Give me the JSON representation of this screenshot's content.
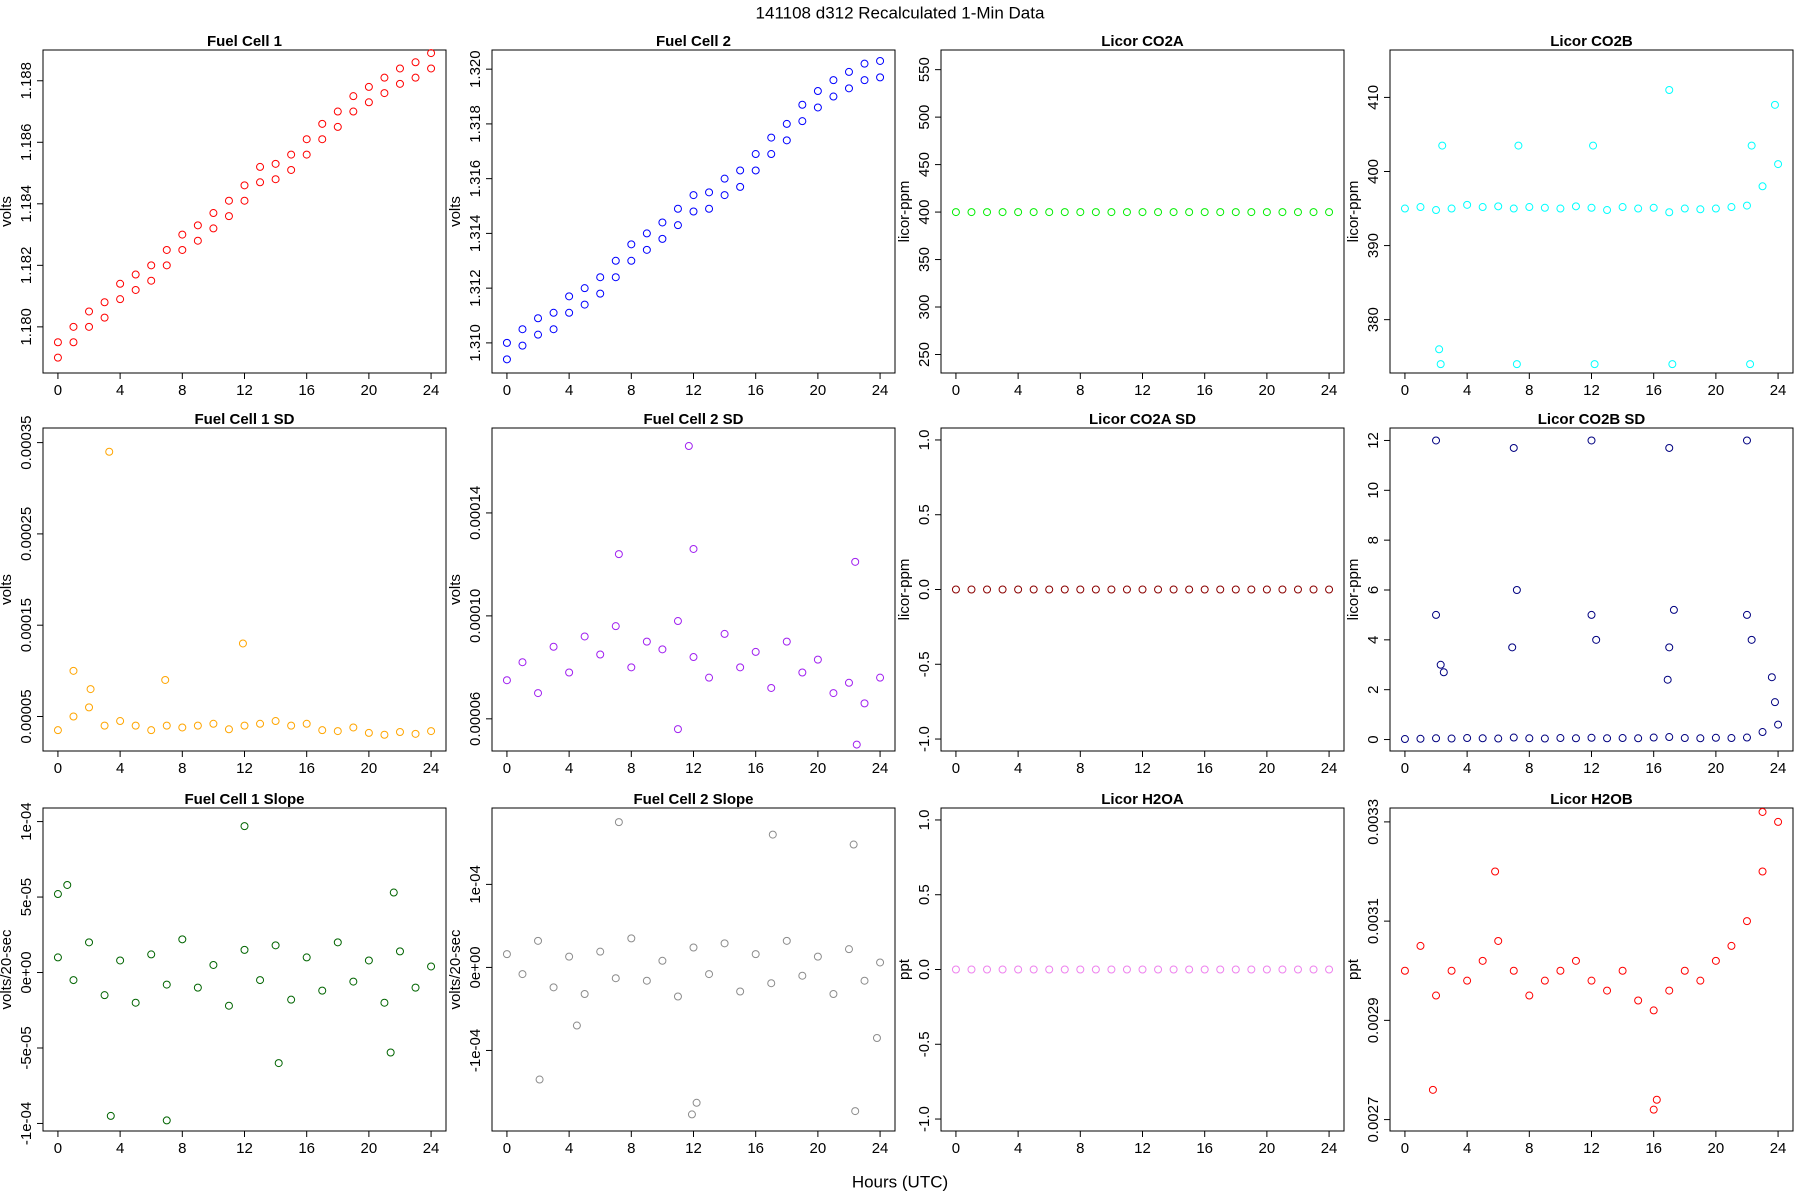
{
  "title": "141108   d312   Recalculated 1-Min Data",
  "xlabel": "Hours (UTC)",
  "chart_data": [
    {
      "type": "scatter",
      "title": "Fuel Cell 1",
      "ylabel": "volts",
      "x": [
        0,
        1,
        2,
        3,
        4,
        5,
        6,
        7,
        8,
        9,
        10,
        11,
        12,
        13,
        14,
        15,
        16,
        17,
        18,
        19,
        20,
        21,
        22,
        23,
        24
      ],
      "series": [
        {
          "color": "#ff0000",
          "values": [
            1.1795,
            1.18,
            1.1805,
            1.1808,
            1.1814,
            1.1817,
            1.182,
            1.1825,
            1.183,
            1.1833,
            1.1837,
            1.1841,
            1.1846,
            1.1852,
            1.1853,
            1.1856,
            1.1861,
            1.1866,
            1.187,
            1.1875,
            1.1878,
            1.1881,
            1.1884,
            1.1886,
            1.1889
          ]
        },
        {
          "color": "#ff0000",
          "values": [
            1.179,
            1.1795,
            1.18,
            1.1803,
            1.1809,
            1.1812,
            1.1815,
            1.182,
            1.1825,
            1.1828,
            1.1832,
            1.1836,
            1.1841,
            1.1847,
            1.1848,
            1.1851,
            1.1856,
            1.1861,
            1.1865,
            1.187,
            1.1873,
            1.1876,
            1.1879,
            1.1881,
            1.1884
          ]
        }
      ],
      "xlim": [
        -0.96,
        24.96
      ],
      "xticks": [
        0,
        4,
        8,
        12,
        16,
        20,
        24
      ],
      "ylim": [
        1.1785,
        1.189
      ],
      "yticks": [
        {
          "value": 1.18,
          "label": "1.180"
        },
        1.182,
        1.184,
        1.186,
        1.188
      ]
    },
    {
      "type": "scatter",
      "title": "Fuel Cell 2",
      "ylabel": "volts",
      "x": [
        0,
        1,
        2,
        3,
        4,
        5,
        6,
        7,
        8,
        9,
        10,
        11,
        12,
        13,
        14,
        15,
        16,
        17,
        18,
        19,
        20,
        21,
        22,
        23,
        24
      ],
      "series": [
        {
          "color": "#0000ff",
          "values": [
            1.31,
            1.3105,
            1.3109,
            1.3111,
            1.3117,
            1.312,
            1.3124,
            1.313,
            1.3136,
            1.314,
            1.3144,
            1.3149,
            1.3154,
            1.3155,
            1.316,
            1.3163,
            1.3169,
            1.3175,
            1.318,
            1.3187,
            1.3192,
            1.3196,
            1.3199,
            1.3202,
            1.3203
          ]
        },
        {
          "color": "#0000ff",
          "values": [
            1.3094,
            1.3099,
            1.3103,
            1.3105,
            1.3111,
            1.3114,
            1.3118,
            1.3124,
            1.313,
            1.3134,
            1.3138,
            1.3143,
            1.3148,
            1.3149,
            1.3154,
            1.3157,
            1.3163,
            1.3169,
            1.3174,
            1.3181,
            1.3186,
            1.319,
            1.3193,
            1.3196,
            1.3197
          ]
        }
      ],
      "xlim": [
        -0.96,
        24.96
      ],
      "xticks": [
        0,
        4,
        8,
        12,
        16,
        20,
        24
      ],
      "ylim": [
        1.3089,
        1.3207
      ],
      "yticks": [
        {
          "value": 1.31,
          "label": "1.310"
        },
        1.312,
        1.314,
        1.316,
        1.318,
        {
          "value": 1.32,
          "label": "1.320"
        }
      ]
    },
    {
      "type": "scatter",
      "title": "Licor CO2A",
      "ylabel": "licor-ppm",
      "color": "#00ee00",
      "x": [
        0,
        1,
        2,
        3,
        4,
        5,
        6,
        7,
        8,
        9,
        10,
        11,
        12,
        13,
        14,
        15,
        16,
        17,
        18,
        19,
        20,
        21,
        22,
        23,
        24
      ],
      "values": [
        400,
        400,
        400,
        400,
        400,
        400,
        400,
        400,
        400,
        400,
        400,
        400,
        400,
        400,
        400,
        400,
        400,
        400,
        400,
        400,
        400,
        400,
        400,
        400,
        400
      ],
      "xlim": [
        -0.96,
        24.96
      ],
      "xticks": [
        0,
        4,
        8,
        12,
        16,
        20,
        24
      ],
      "ylim": [
        230.5,
        570.7
      ],
      "yticks": [
        250,
        300,
        350,
        400,
        450,
        500,
        550
      ]
    },
    {
      "type": "scatter",
      "title": "Licor CO2B",
      "ylabel": "licor-ppm",
      "color": "#00ffff",
      "x": [
        0,
        1,
        2,
        3,
        4,
        5,
        6,
        7,
        8,
        9,
        10,
        11,
        12,
        13,
        14,
        15,
        16,
        17,
        18,
        19,
        20,
        21,
        22,
        23,
        24,
        2.2,
        2.3,
        2.4,
        7.2,
        7.3,
        12.1,
        12.2,
        17,
        17.2,
        22.2,
        22.3,
        23.8
      ],
      "values": [
        395,
        395.2,
        394.8,
        395,
        395.5,
        395.2,
        395.3,
        395,
        395.2,
        395.1,
        395,
        395.3,
        395.1,
        394.8,
        395.2,
        395,
        395.1,
        394.5,
        395,
        394.9,
        395,
        395.2,
        395.4,
        398,
        401,
        376,
        374,
        403.5,
        374,
        403.5,
        403.5,
        374,
        411,
        374,
        374,
        403.5,
        409
      ],
      "xlim": [
        -0.96,
        24.96
      ],
      "xticks": [
        0,
        4,
        8,
        12,
        16,
        20,
        24
      ],
      "ylim": [
        372.8,
        416.4
      ],
      "yticks": [
        380,
        390,
        400,
        410
      ]
    },
    {
      "type": "scatter",
      "title": "Fuel Cell 1 SD",
      "ylabel": "volts",
      "color": "#ffa500",
      "x": [
        0,
        1,
        2,
        3,
        4,
        5,
        6,
        7,
        8,
        9,
        10,
        11,
        12,
        13,
        14,
        15,
        16,
        17,
        18,
        19,
        20,
        21,
        22,
        23,
        24,
        3.3,
        11.9,
        1,
        6.9,
        2.1
      ],
      "values": [
        3.5e-05,
        5e-05,
        6e-05,
        4e-05,
        4.5e-05,
        4e-05,
        3.5e-05,
        4e-05,
        3.8e-05,
        4e-05,
        4.2e-05,
        3.6e-05,
        4e-05,
        4.2e-05,
        4.5e-05,
        4e-05,
        4.2e-05,
        3.5e-05,
        3.4e-05,
        3.8e-05,
        3.2e-05,
        3e-05,
        3.3e-05,
        3.1e-05,
        3.4e-05,
        0.00034,
        0.00013,
        0.0001,
        9e-05,
        8e-05
      ],
      "xlim": [
        -0.96,
        24.96
      ],
      "xticks": [
        0,
        4,
        8,
        12,
        16,
        20,
        24
      ],
      "ylim": [
        1.22e-05,
        0.000366
      ],
      "yticks": [
        5e-05,
        0.00015,
        0.00025,
        0.00035
      ]
    },
    {
      "type": "scatter",
      "title": "Fuel Cell 2 SD",
      "ylabel": "volts",
      "color": "#a020f0",
      "x": [
        0,
        1,
        2,
        3,
        4,
        5,
        6,
        7,
        8,
        9,
        10,
        11,
        12,
        13,
        14,
        15,
        16,
        17,
        18,
        19,
        20,
        21,
        22,
        23,
        24,
        11.7,
        12,
        7.2,
        22.4,
        11,
        22.5
      ],
      "values": [
        7.5e-05,
        8.2e-05,
        7e-05,
        8.8e-05,
        7.8e-05,
        9.2e-05,
        8.5e-05,
        9.6e-05,
        8e-05,
        9e-05,
        8.7e-05,
        9.8e-05,
        8.4e-05,
        7.6e-05,
        9.3e-05,
        8e-05,
        8.6e-05,
        7.2e-05,
        9e-05,
        7.8e-05,
        8.3e-05,
        7e-05,
        7.4e-05,
        6.6e-05,
        7.6e-05,
        0.000166,
        0.000126,
        0.000124,
        0.000121,
        5.6e-05,
        5e-05
      ],
      "xlim": [
        -0.96,
        24.96
      ],
      "xticks": [
        0,
        4,
        8,
        12,
        16,
        20,
        24
      ],
      "ylim": [
        4.75e-05,
        0.000173
      ],
      "yticks": [
        6e-05,
        {
          "value": 0.0001,
          "label": "0.00010"
        },
        0.00014
      ]
    },
    {
      "type": "scatter",
      "title": "Licor CO2A SD",
      "ylabel": "licor-ppm",
      "color": "#8b0000",
      "x": [
        0,
        1,
        2,
        3,
        4,
        5,
        6,
        7,
        8,
        9,
        10,
        11,
        12,
        13,
        14,
        15,
        16,
        17,
        18,
        19,
        20,
        21,
        22,
        23,
        24
      ],
      "values": [
        0,
        0,
        0,
        0,
        0,
        0,
        0,
        0,
        0,
        0,
        0,
        0,
        0,
        0,
        0,
        0,
        0,
        0,
        0,
        0,
        0,
        0,
        0,
        0,
        0
      ],
      "xlim": [
        -0.96,
        24.96
      ],
      "xticks": [
        0,
        4,
        8,
        12,
        16,
        20,
        24
      ],
      "ylim": [
        -1.08,
        1.08
      ],
      "yticks": [
        {
          "value": -1,
          "label": "-1.0"
        },
        -0.5,
        {
          "value": 0,
          "label": "0.0"
        },
        0.5,
        {
          "value": 1,
          "label": "1.0"
        }
      ]
    },
    {
      "type": "scatter",
      "title": "Licor CO2B SD",
      "ylabel": "licor-ppm",
      "color": "#000080",
      "x": [
        0,
        1,
        2,
        3,
        4,
        5,
        6,
        7,
        8,
        9,
        10,
        11,
        12,
        13,
        14,
        15,
        16,
        17,
        18,
        19,
        20,
        21,
        22,
        23,
        24,
        2,
        2,
        2.3,
        2.5,
        7,
        7.2,
        6.9,
        12,
        12,
        12.3,
        17,
        17.3,
        17,
        16.9,
        22,
        22,
        22.3,
        23.6,
        23.8
      ],
      "values": [
        0.02,
        0.03,
        0.05,
        0.04,
        0.06,
        0.05,
        0.04,
        0.08,
        0.05,
        0.04,
        0.06,
        0.05,
        0.07,
        0.05,
        0.06,
        0.05,
        0.08,
        0.1,
        0.06,
        0.05,
        0.07,
        0.06,
        0.08,
        0.3,
        0.6,
        12,
        5,
        3,
        2.7,
        11.7,
        6,
        3.7,
        12,
        5,
        4,
        11.7,
        5.2,
        3.7,
        2.4,
        12,
        5,
        4,
        2.5,
        1.5
      ],
      "xlim": [
        -0.96,
        24.96
      ],
      "xticks": [
        0,
        4,
        8,
        12,
        16,
        20,
        24
      ],
      "ylim": [
        -0.46,
        12.5
      ],
      "yticks": [
        0,
        2,
        4,
        6,
        8,
        10,
        12
      ]
    },
    {
      "type": "scatter",
      "title": "Fuel Cell 1 Slope",
      "ylabel": "volts/20-sec",
      "color": "#006400",
      "x": [
        0,
        1,
        2,
        3,
        4,
        5,
        6,
        7,
        8,
        9,
        10,
        11,
        12,
        13,
        14,
        15,
        16,
        17,
        18,
        19,
        20,
        21,
        22,
        23,
        24,
        12,
        3.4,
        7,
        0.6,
        0,
        14.2,
        21.6,
        21.4
      ],
      "values": [
        1e-05,
        -5e-06,
        2e-05,
        -1.5e-05,
        8e-06,
        -2e-05,
        1.2e-05,
        -8e-06,
        2.2e-05,
        -1e-05,
        5e-06,
        -2.2e-05,
        1.5e-05,
        -5e-06,
        1.8e-05,
        -1.8e-05,
        1e-05,
        -1.2e-05,
        2e-05,
        -6e-06,
        8e-06,
        -2e-05,
        1.4e-05,
        -1e-05,
        4e-06,
        9.7e-05,
        -9.5e-05,
        -9.8e-05,
        5.8e-05,
        5.2e-05,
        -6e-05,
        5.3e-05,
        -5.3e-05
      ],
      "xlim": [
        -0.96,
        24.96
      ],
      "xticks": [
        0,
        4,
        8,
        12,
        16,
        20,
        24
      ],
      "ylim": [
        -0.000105,
        0.000109
      ],
      "yticks": [
        {
          "value": -0.0001,
          "label": "-1e-04"
        },
        {
          "value": -5e-05,
          "label": "-5e-05"
        },
        {
          "value": 0,
          "label": "0e+00"
        },
        {
          "value": 5e-05,
          "label": "5e-05"
        },
        {
          "value": 0.0001,
          "label": "1e-04"
        }
      ]
    },
    {
      "type": "scatter",
      "title": "Fuel Cell 2 Slope",
      "ylabel": "volts/20-sec",
      "color": "#8c8c8c",
      "x": [
        0,
        1,
        2,
        3,
        4,
        5,
        6,
        7,
        8,
        9,
        10,
        11,
        12,
        13,
        14,
        15,
        16,
        17,
        18,
        19,
        20,
        21,
        22,
        23,
        24,
        7.2,
        11.9,
        12.2,
        22.3,
        22.4,
        17.1,
        2.1,
        23.8,
        4.5
      ],
      "values": [
        1.6e-05,
        -8e-06,
        3.2e-05,
        -2.4e-05,
        1.3e-05,
        -3.2e-05,
        1.9e-05,
        -1.3e-05,
        3.5e-05,
        -1.6e-05,
        8e-06,
        -3.5e-05,
        2.4e-05,
        -8e-06,
        2.9e-05,
        -2.9e-05,
        1.6e-05,
        -1.9e-05,
        3.2e-05,
        -1e-05,
        1.3e-05,
        -3.2e-05,
        2.2e-05,
        -1.6e-05,
        6e-06,
        0.000175,
        -0.000177,
        -0.000163,
        0.000148,
        -0.000173,
        0.00016,
        -0.000135,
        -8.5e-05,
        -7e-05
      ],
      "xlim": [
        -0.96,
        24.96
      ],
      "xticks": [
        0,
        4,
        8,
        12,
        16,
        20,
        24
      ],
      "ylim": [
        -0.000197,
        0.000192
      ],
      "yticks": [
        {
          "value": -0.0001,
          "label": "-1e-04"
        },
        {
          "value": 0,
          "label": "0e+00"
        },
        {
          "value": 0.0001,
          "label": "1e-04"
        }
      ]
    },
    {
      "type": "scatter",
      "title": "Licor H2OA",
      "ylabel": "ppt",
      "color": "#ee82ee",
      "x": [
        0,
        1,
        2,
        3,
        4,
        5,
        6,
        7,
        8,
        9,
        10,
        11,
        12,
        13,
        14,
        15,
        16,
        17,
        18,
        19,
        20,
        21,
        22,
        23,
        24
      ],
      "values": [
        0,
        0,
        0,
        0,
        0,
        0,
        0,
        0,
        0,
        0,
        0,
        0,
        0,
        0,
        0,
        0,
        0,
        0,
        0,
        0,
        0,
        0,
        0,
        0,
        0
      ],
      "xlim": [
        -0.96,
        24.96
      ],
      "xticks": [
        0,
        4,
        8,
        12,
        16,
        20,
        24
      ],
      "ylim": [
        -1.08,
        1.08
      ],
      "yticks": [
        {
          "value": -1,
          "label": "-1.0"
        },
        -0.5,
        {
          "value": 0,
          "label": "0.0"
        },
        0.5,
        {
          "value": 1,
          "label": "1.0"
        }
      ]
    },
    {
      "type": "scatter",
      "title": "Licor H2OB",
      "ylabel": "ppt",
      "color": "#ff0000",
      "x": [
        0,
        1,
        2,
        3,
        4,
        5,
        6,
        7,
        8,
        9,
        10,
        11,
        12,
        13,
        14,
        15,
        16,
        17,
        18,
        19,
        20,
        21,
        22,
        23,
        24,
        16,
        1.8,
        5.8,
        16.2,
        23
      ],
      "values": [
        0.003,
        0.00305,
        0.00295,
        0.003,
        0.00298,
        0.00302,
        0.00306,
        0.003,
        0.00295,
        0.00298,
        0.003,
        0.00302,
        0.00298,
        0.00296,
        0.003,
        0.00294,
        0.00292,
        0.00296,
        0.003,
        0.00298,
        0.00302,
        0.00305,
        0.0031,
        0.0032,
        0.0033,
        0.00272,
        0.00276,
        0.0032,
        0.00274,
        0.00332
      ],
      "xlim": [
        -0.96,
        24.96
      ],
      "xticks": [
        0,
        4,
        8,
        12,
        16,
        20,
        24
      ],
      "ylim": [
        0.002677,
        0.003328
      ],
      "yticks": [
        0.0027,
        0.0029,
        0.0031,
        0.0033
      ]
    }
  ]
}
